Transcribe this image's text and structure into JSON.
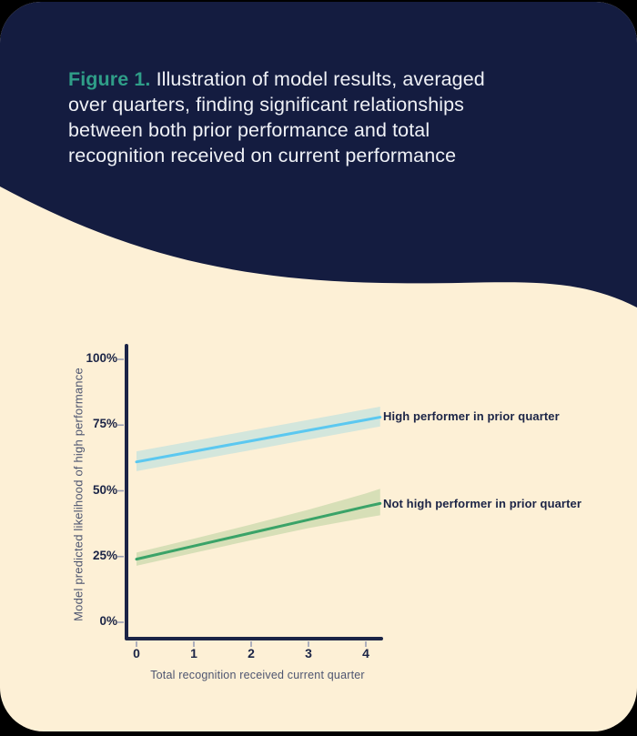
{
  "theme": {
    "page_bg": "#000000",
    "navy": "#141c40",
    "cream": "#fdf0d6",
    "teal": "#2f9e88",
    "header_text": "#eff1f6",
    "axis": "#1b2446",
    "tick_text": "#1b2446",
    "muted_label": "#4d5570",
    "tick_mark": "#9aa0b5"
  },
  "header": {
    "figure_label": "Figure 1.",
    "lines": [
      "Illustration of model results, averaged",
      "over quarters, finding significant relationships",
      "between both prior performance and total",
      "recognition received on current performance"
    ]
  },
  "chart_data": {
    "type": "line",
    "title": "",
    "xlabel": "Total recognition received current quarter",
    "ylabel": "Model predicted likelihood of high performance",
    "xlim": [
      0,
      4.25
    ],
    "ylim": [
      0,
      100
    ],
    "grid": false,
    "legend_position": "right-of-line-ends",
    "x_ticks": {
      "values": [
        0,
        1,
        2,
        3,
        4
      ],
      "labels": [
        "0",
        "1",
        "2",
        "3",
        "4"
      ]
    },
    "y_ticks": {
      "values": [
        0,
        25,
        50,
        75,
        100
      ],
      "labels": [
        "0%",
        "25%",
        "50%",
        "75%",
        "100%"
      ]
    },
    "series": [
      {
        "name": "High performer in prior quarter",
        "color": "#5bc8f0",
        "band_color": "rgba(91,200,240,0.26)",
        "x": [
          0,
          1,
          2,
          3,
          4,
          4.25
        ],
        "y": [
          61,
          65,
          69,
          73,
          77,
          78
        ],
        "band_upper": [
          65,
          69,
          73,
          77,
          81,
          82
        ],
        "band_lower": [
          57.5,
          61.5,
          65.5,
          69.5,
          73.5,
          74.5
        ]
      },
      {
        "name": "Not high performer in prior quarter",
        "color": "#3aa368",
        "band_color": "rgba(110,175,95,0.26)",
        "x": [
          0,
          1,
          2,
          3,
          4,
          4.25
        ],
        "y": [
          24,
          29,
          34,
          39,
          44,
          45.2
        ],
        "band_upper": [
          26.5,
          31.8,
          37.2,
          42.8,
          49,
          50.8
        ],
        "band_lower": [
          21.5,
          26.4,
          31.2,
          35.8,
          39.8,
          40.7
        ]
      }
    ]
  }
}
